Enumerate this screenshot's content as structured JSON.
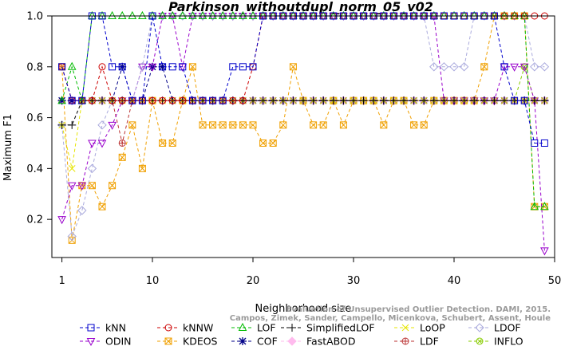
{
  "chart_data": {
    "type": "line",
    "title": "Parkinson_withoutdupl_norm_05_v02",
    "xlabel": "Neighborhood size",
    "ylabel": "Maximum F1",
    "xlim": [
      0,
      50
    ],
    "ylim": [
      0.05,
      1.0
    ],
    "xticks": [
      1,
      10,
      20,
      30,
      40,
      50
    ],
    "yticks": [
      0.2,
      0.4,
      0.6,
      0.8,
      1.0
    ],
    "ytick_labels": [
      "0.2",
      "0.4",
      "0.6",
      "0.8",
      "1.0"
    ],
    "watermark": [
      "Evaluation of Unsupervised Outlier Detection. DAMI, 2015.",
      "Campos, Zimek, Sander, Campello, Micenkova, Schubert, Assent, Houle"
    ],
    "legend_position": "bottom",
    "x": [
      1,
      2,
      3,
      4,
      5,
      6,
      7,
      8,
      9,
      10,
      11,
      12,
      13,
      14,
      15,
      16,
      17,
      18,
      19,
      20,
      21,
      22,
      23,
      24,
      25,
      26,
      27,
      28,
      29,
      30,
      31,
      32,
      33,
      34,
      35,
      36,
      37,
      38,
      39,
      40,
      41,
      42,
      43,
      44,
      45,
      46,
      47,
      48,
      49
    ],
    "series": [
      {
        "name": "kNN",
        "color": "#0000cc",
        "marker": "square",
        "values": [
          0.8,
          0.667,
          0.667,
          1.0,
          1.0,
          0.8,
          0.8,
          0.667,
          0.667,
          1.0,
          0.8,
          0.8,
          0.8,
          0.667,
          0.667,
          0.667,
          0.667,
          0.8,
          0.8,
          0.8,
          1.0,
          1.0,
          1.0,
          1.0,
          1.0,
          1.0,
          1.0,
          1.0,
          1.0,
          1.0,
          1.0,
          1.0,
          1.0,
          1.0,
          1.0,
          1.0,
          1.0,
          1.0,
          1.0,
          1.0,
          1.0,
          1.0,
          1.0,
          1.0,
          0.8,
          0.667,
          0.667,
          0.5,
          0.5
        ]
      },
      {
        "name": "kNNW",
        "color": "#cc0000",
        "marker": "circle",
        "values": [
          0.8,
          0.667,
          0.667,
          0.667,
          0.8,
          0.667,
          0.667,
          0.667,
          0.667,
          0.667,
          0.667,
          0.667,
          0.667,
          0.667,
          0.667,
          0.667,
          0.667,
          0.667,
          0.667,
          0.8,
          1.0,
          1.0,
          1.0,
          1.0,
          1.0,
          1.0,
          1.0,
          1.0,
          1.0,
          1.0,
          1.0,
          1.0,
          1.0,
          1.0,
          1.0,
          1.0,
          1.0,
          1.0,
          1.0,
          1.0,
          1.0,
          1.0,
          1.0,
          1.0,
          1.0,
          1.0,
          1.0,
          1.0,
          1.0
        ]
      },
      {
        "name": "LOF",
        "color": "#00bb00",
        "marker": "triangle-up",
        "values": [
          0.667,
          0.8,
          0.667,
          1.0,
          1.0,
          1.0,
          1.0,
          1.0,
          1.0,
          1.0,
          1.0,
          1.0,
          1.0,
          1.0,
          1.0,
          1.0,
          1.0,
          1.0,
          1.0,
          1.0,
          1.0,
          1.0,
          1.0,
          1.0,
          1.0,
          1.0,
          1.0,
          1.0,
          1.0,
          1.0,
          1.0,
          1.0,
          1.0,
          1.0,
          1.0,
          1.0,
          1.0,
          1.0,
          1.0,
          1.0,
          1.0,
          1.0,
          1.0,
          1.0,
          1.0,
          1.0,
          1.0,
          0.25,
          0.25
        ]
      },
      {
        "name": "SimplifiedLOF",
        "color": "#000000",
        "marker": "plus",
        "values": [
          0.571,
          0.571,
          0.667,
          0.667,
          0.667,
          0.667,
          0.667,
          0.667,
          0.667,
          0.667,
          0.667,
          0.667,
          0.667,
          0.667,
          0.667,
          0.667,
          0.667,
          0.667,
          0.667,
          0.667,
          0.667,
          0.667,
          0.667,
          0.667,
          0.667,
          0.667,
          0.667,
          0.667,
          0.667,
          0.667,
          0.667,
          0.667,
          0.667,
          0.667,
          0.667,
          0.667,
          0.667,
          0.667,
          0.667,
          0.667,
          0.667,
          0.667,
          0.667,
          0.667,
          0.667,
          0.667,
          0.667,
          0.667,
          0.667
        ]
      },
      {
        "name": "LoOP",
        "color": "#e6e600",
        "marker": "cross",
        "values": [
          0.571,
          0.4,
          0.667,
          0.667,
          0.667,
          0.667,
          0.667,
          0.667,
          0.667,
          0.667,
          0.667,
          0.667,
          0.667,
          0.667,
          0.667,
          0.667,
          0.667,
          0.667,
          0.667,
          0.667,
          0.667,
          0.667,
          0.667,
          0.667,
          0.667,
          0.667,
          0.667,
          0.667,
          0.667,
          0.667,
          0.667,
          0.667,
          0.667,
          0.667,
          0.667,
          0.667,
          0.667,
          0.667,
          0.667,
          0.667,
          0.667,
          0.667,
          0.667,
          0.667,
          0.667,
          0.667,
          0.667,
          0.667,
          0.667
        ]
      },
      {
        "name": "LDOF",
        "color": "#aaaadd",
        "marker": "diamond",
        "values": [
          0.571,
          0.133,
          0.235,
          0.4,
          0.571,
          0.667,
          0.667,
          0.667,
          0.8,
          1.0,
          1.0,
          1.0,
          1.0,
          1.0,
          1.0,
          1.0,
          1.0,
          1.0,
          1.0,
          1.0,
          1.0,
          1.0,
          1.0,
          1.0,
          1.0,
          1.0,
          1.0,
          1.0,
          1.0,
          1.0,
          1.0,
          1.0,
          1.0,
          1.0,
          1.0,
          1.0,
          1.0,
          0.8,
          0.8,
          0.8,
          0.8,
          1.0,
          1.0,
          1.0,
          1.0,
          1.0,
          1.0,
          0.8,
          0.8
        ]
      },
      {
        "name": "ODIN",
        "color": "#9900cc",
        "marker": "triangle-down",
        "values": [
          0.2,
          0.333,
          0.333,
          0.5,
          0.5,
          0.571,
          0.667,
          0.667,
          0.8,
          0.8,
          1.0,
          1.0,
          0.8,
          1.0,
          1.0,
          1.0,
          1.0,
          1.0,
          1.0,
          1.0,
          1.0,
          1.0,
          1.0,
          1.0,
          1.0,
          1.0,
          1.0,
          1.0,
          1.0,
          1.0,
          1.0,
          1.0,
          1.0,
          1.0,
          1.0,
          1.0,
          1.0,
          1.0,
          0.667,
          0.667,
          0.667,
          0.667,
          0.667,
          0.667,
          0.8,
          0.8,
          0.8,
          0.667,
          0.077
        ]
      },
      {
        "name": "KDEOS",
        "color": "#f0a000",
        "marker": "box-x",
        "values": [
          0.8,
          0.118,
          0.333,
          0.333,
          0.25,
          0.333,
          0.444,
          0.571,
          0.4,
          0.667,
          0.5,
          0.5,
          0.667,
          0.8,
          0.571,
          0.571,
          0.571,
          0.571,
          0.571,
          0.571,
          0.5,
          0.5,
          0.571,
          0.8,
          0.667,
          0.571,
          0.571,
          0.667,
          0.571,
          0.667,
          0.667,
          0.667,
          0.571,
          0.667,
          0.667,
          0.571,
          0.571,
          0.667,
          0.667,
          0.667,
          0.667,
          0.667,
          0.8,
          1.0,
          1.0,
          1.0,
          1.0,
          0.25,
          0.25
        ]
      },
      {
        "name": "COF",
        "color": "#000088",
        "marker": "asterisk",
        "values": [
          0.667,
          0.667,
          0.667,
          0.667,
          0.667,
          0.667,
          0.8,
          0.667,
          0.667,
          0.8,
          0.8,
          0.667,
          0.667,
          0.667,
          0.667,
          0.667,
          0.667,
          0.667,
          0.667,
          0.667,
          0.667,
          0.667,
          0.667,
          0.667,
          0.667,
          0.667,
          0.667,
          0.667,
          0.667,
          0.667,
          0.667,
          0.667,
          0.667,
          0.667,
          0.667,
          0.667,
          0.667,
          0.667,
          0.667,
          0.667,
          0.667,
          0.667,
          0.667,
          0.667,
          0.667,
          0.667,
          0.667,
          0.667,
          0.667
        ]
      },
      {
        "name": "FastABOD",
        "color": "#ffbbee",
        "marker": "diamond-filled",
        "values": [
          0.667,
          0.667,
          0.667,
          0.667,
          0.667,
          0.667,
          0.667,
          0.667,
          0.667,
          0.667,
          0.667,
          0.667,
          0.667,
          0.667,
          0.667,
          0.667,
          0.667,
          0.667,
          0.667,
          0.667,
          0.667,
          0.667,
          0.667,
          0.667,
          0.667,
          0.667,
          0.667,
          0.667,
          0.667,
          0.667,
          0.667,
          0.667,
          0.667,
          0.667,
          0.667,
          0.667,
          0.667,
          0.667,
          0.667,
          0.667,
          0.667,
          0.667,
          0.667,
          0.667,
          0.667,
          0.667,
          0.667,
          0.667,
          0.667
        ]
      },
      {
        "name": "LDF",
        "color": "#bb3333",
        "marker": "circle-plus",
        "values": [
          0.8,
          0.667,
          0.667,
          0.667,
          0.667,
          0.667,
          0.5,
          0.667,
          0.667,
          0.667,
          0.667,
          0.667,
          0.667,
          0.667,
          0.667,
          0.667,
          0.667,
          0.667,
          0.667,
          0.667,
          0.667,
          0.667,
          0.667,
          0.667,
          0.667,
          0.667,
          0.667,
          0.667,
          0.667,
          0.667,
          0.667,
          0.667,
          0.667,
          0.667,
          0.667,
          0.667,
          0.667,
          0.667,
          0.667,
          0.667,
          0.667,
          0.667,
          0.667,
          0.667,
          0.667,
          0.667,
          0.667,
          0.667,
          0.667
        ]
      },
      {
        "name": "INFLO",
        "color": "#88cc00",
        "marker": "circle-x",
        "values": [
          0.667,
          0.667,
          0.667,
          0.667,
          0.667,
          0.667,
          0.667,
          0.667,
          0.667,
          0.667,
          0.667,
          0.667,
          0.667,
          0.667,
          0.667,
          0.667,
          0.667,
          0.667,
          0.667,
          0.667,
          0.667,
          0.667,
          0.667,
          0.667,
          0.667,
          0.667,
          0.667,
          0.667,
          0.667,
          0.667,
          0.667,
          0.667,
          0.667,
          0.667,
          0.667,
          0.667,
          0.667,
          0.667,
          0.667,
          0.667,
          0.667,
          0.667,
          0.667,
          0.667,
          0.667,
          0.667,
          0.8,
          0.667,
          0.667
        ]
      }
    ]
  }
}
